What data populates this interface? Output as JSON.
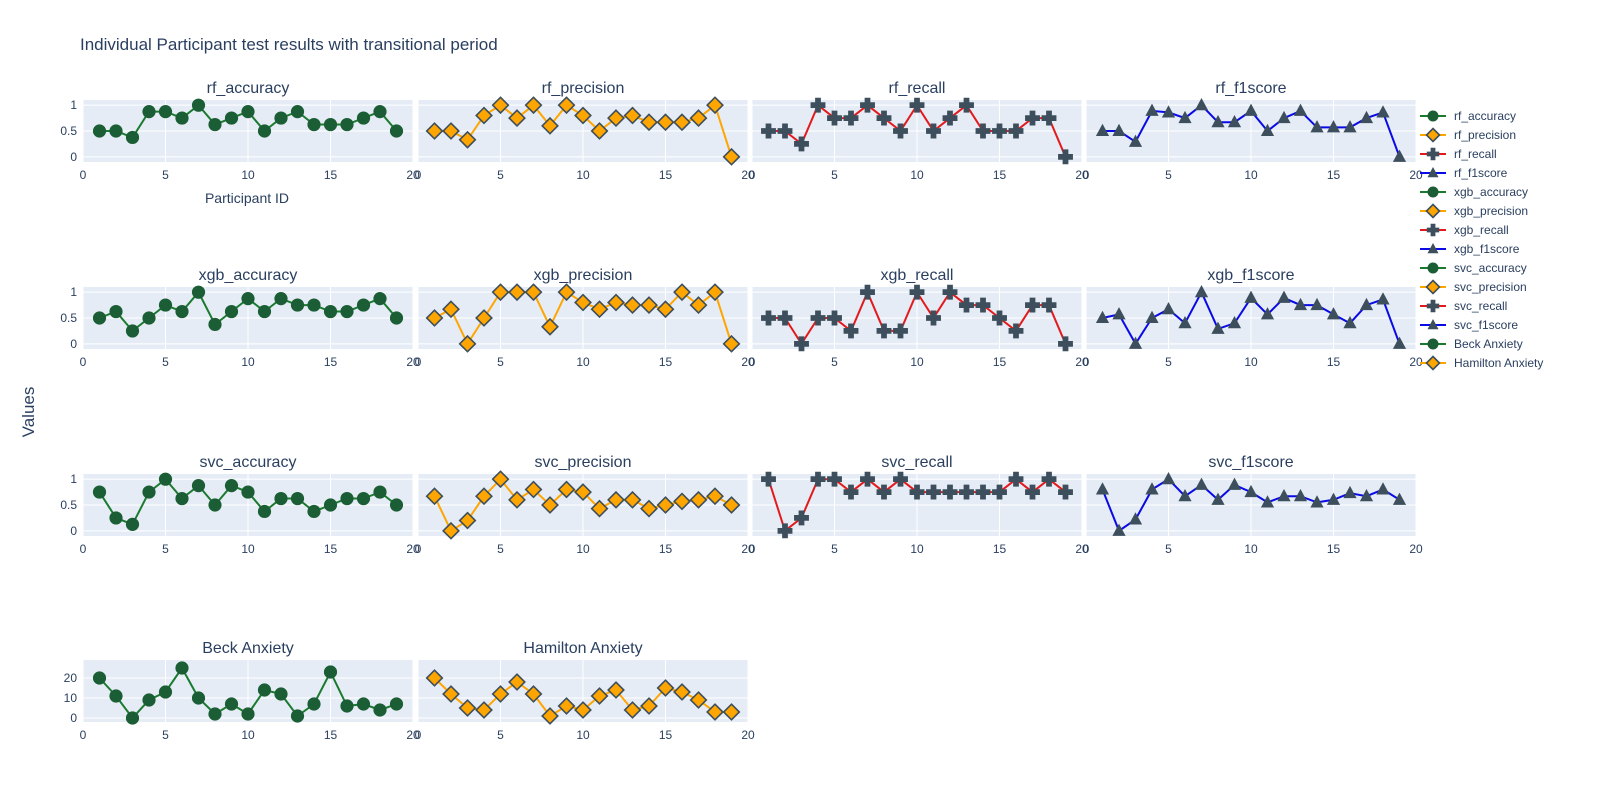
{
  "title": "Individual Participant test results with transitional period",
  "ylabel_global": "Values",
  "xlabel_first": "Participant ID",
  "colors": {
    "green": "#1a7a2e",
    "orange": "#ffa500",
    "red": "#e31a1c",
    "blue": "#0a0ae6",
    "marker": "#3d4f5c",
    "plot_bg": "#e5ecf6",
    "text": "#2a3f5f"
  },
  "legend": [
    {
      "name": "rf_accuracy",
      "color": "green",
      "symbol": "circle"
    },
    {
      "name": "rf_precision",
      "color": "orange",
      "symbol": "diamond"
    },
    {
      "name": "rf_recall",
      "color": "red",
      "symbol": "cross"
    },
    {
      "name": "rf_f1score",
      "color": "blue",
      "symbol": "triangle"
    },
    {
      "name": "xgb_accuracy",
      "color": "green",
      "symbol": "circle"
    },
    {
      "name": "xgb_precision",
      "color": "orange",
      "symbol": "diamond"
    },
    {
      "name": "xgb_recall",
      "color": "red",
      "symbol": "cross"
    },
    {
      "name": "xgb_f1score",
      "color": "blue",
      "symbol": "triangle"
    },
    {
      "name": "svc_accuracy",
      "color": "green",
      "symbol": "circle"
    },
    {
      "name": "svc_precision",
      "color": "orange",
      "symbol": "diamond"
    },
    {
      "name": "svc_recall",
      "color": "red",
      "symbol": "cross"
    },
    {
      "name": "svc_f1score",
      "color": "blue",
      "symbol": "triangle"
    },
    {
      "name": "Beck Anxiety",
      "color": "green",
      "symbol": "circle"
    },
    {
      "name": "Hamilton Anxiety",
      "color": "orange",
      "symbol": "diamond"
    }
  ],
  "chart_data": {
    "type": "line",
    "x": [
      1,
      2,
      3,
      4,
      5,
      6,
      7,
      8,
      9,
      10,
      11,
      12,
      13,
      14,
      15,
      16,
      17,
      18,
      19
    ],
    "xlim": [
      0,
      20
    ],
    "xticks": [
      0,
      5,
      10,
      15,
      20
    ],
    "grid": true,
    "legend_position": "right",
    "panels": [
      {
        "title": "rf_accuracy",
        "color": "green",
        "symbol": "circle",
        "ylim": [
          -0.1,
          1.1
        ],
        "yticks": [
          0,
          0.5,
          1
        ],
        "ytick_labels": [
          "0",
          "0.5",
          "1"
        ],
        "values": [
          0.5,
          0.5,
          0.375,
          0.875,
          0.875,
          0.75,
          1,
          0.625,
          0.75,
          0.875,
          0.5,
          0.75,
          0.875,
          0.625,
          0.625,
          0.625,
          0.75,
          0.875,
          0.5
        ]
      },
      {
        "title": "rf_precision",
        "color": "orange",
        "symbol": "diamond",
        "ylim": [
          -0.1,
          1.1
        ],
        "yticks": [
          0,
          0.5,
          1
        ],
        "ytick_labels": [
          "0",
          "0.5",
          "1"
        ],
        "values": [
          0.5,
          0.5,
          0.33,
          0.8,
          1,
          0.75,
          1,
          0.6,
          1,
          0.8,
          0.5,
          0.75,
          0.8,
          0.67,
          0.67,
          0.67,
          0.75,
          1,
          0
        ]
      },
      {
        "title": "rf_recall",
        "color": "red",
        "symbol": "cross",
        "ylim": [
          -0.1,
          1.1
        ],
        "yticks": [
          0,
          0.5,
          1
        ],
        "ytick_labels": [
          "0",
          "0.5",
          "1"
        ],
        "values": [
          0.5,
          0.5,
          0.25,
          1,
          0.75,
          0.75,
          1,
          0.75,
          0.5,
          1,
          0.5,
          0.75,
          1,
          0.5,
          0.5,
          0.5,
          0.75,
          0.75,
          0
        ]
      },
      {
        "title": "rf_f1score",
        "color": "blue",
        "symbol": "triangle",
        "ylim": [
          -0.1,
          1.1
        ],
        "yticks": [
          0,
          0.5,
          1
        ],
        "ytick_labels": [
          "0",
          "0.5",
          "1"
        ],
        "values": [
          0.5,
          0.5,
          0.29,
          0.89,
          0.86,
          0.75,
          1,
          0.67,
          0.67,
          0.89,
          0.5,
          0.75,
          0.89,
          0.57,
          0.57,
          0.57,
          0.75,
          0.86,
          0
        ]
      },
      {
        "title": "xgb_accuracy",
        "color": "green",
        "symbol": "circle",
        "ylim": [
          -0.1,
          1.1
        ],
        "yticks": [
          0,
          0.5,
          1
        ],
        "ytick_labels": [
          "0",
          "0.5",
          "1"
        ],
        "values": [
          0.5,
          0.625,
          0.25,
          0.5,
          0.75,
          0.625,
          1,
          0.375,
          0.625,
          0.875,
          0.625,
          0.875,
          0.75,
          0.75,
          0.625,
          0.625,
          0.75,
          0.875,
          0.5
        ]
      },
      {
        "title": "xgb_precision",
        "color": "orange",
        "symbol": "diamond",
        "ylim": [
          -0.1,
          1.1
        ],
        "yticks": [
          0,
          0.5,
          1
        ],
        "ytick_labels": [
          "0",
          "0.5",
          "1"
        ],
        "values": [
          0.5,
          0.67,
          0,
          0.5,
          1,
          1,
          1,
          0.33,
          1,
          0.8,
          0.67,
          0.8,
          0.75,
          0.75,
          0.67,
          1,
          0.75,
          1,
          0
        ]
      },
      {
        "title": "xgb_recall",
        "color": "red",
        "symbol": "cross",
        "ylim": [
          -0.1,
          1.1
        ],
        "yticks": [
          0,
          0.5,
          1
        ],
        "ytick_labels": [
          "0",
          "0.5",
          "1"
        ],
        "values": [
          0.5,
          0.5,
          0,
          0.5,
          0.5,
          0.25,
          1,
          0.25,
          0.25,
          1,
          0.5,
          1,
          0.75,
          0.75,
          0.5,
          0.25,
          0.75,
          0.75,
          0
        ]
      },
      {
        "title": "xgb_f1score",
        "color": "blue",
        "symbol": "triangle",
        "ylim": [
          -0.1,
          1.1
        ],
        "yticks": [
          0,
          0.5,
          1
        ],
        "ytick_labels": [
          "0",
          "0.5",
          "1"
        ],
        "values": [
          0.5,
          0.57,
          0,
          0.5,
          0.67,
          0.4,
          1,
          0.29,
          0.4,
          0.89,
          0.57,
          0.89,
          0.75,
          0.75,
          0.57,
          0.4,
          0.75,
          0.86,
          0
        ]
      },
      {
        "title": "svc_accuracy",
        "color": "green",
        "symbol": "circle",
        "ylim": [
          -0.1,
          1.1
        ],
        "yticks": [
          0,
          0.5,
          1
        ],
        "ytick_labels": [
          "0",
          "0.5",
          "1"
        ],
        "values": [
          0.75,
          0.25,
          0.125,
          0.75,
          1,
          0.625,
          0.875,
          0.5,
          0.875,
          0.75,
          0.375,
          0.625,
          0.625,
          0.375,
          0.5,
          0.625,
          0.625,
          0.75,
          0.5
        ]
      },
      {
        "title": "svc_precision",
        "color": "orange",
        "symbol": "diamond",
        "ylim": [
          -0.1,
          1.1
        ],
        "yticks": [
          0,
          0.5,
          1
        ],
        "ytick_labels": [
          "0",
          "0.5",
          "1"
        ],
        "values": [
          0.67,
          0,
          0.2,
          0.67,
          1,
          0.6,
          0.8,
          0.5,
          0.8,
          0.75,
          0.43,
          0.6,
          0.6,
          0.43,
          0.5,
          0.57,
          0.6,
          0.67,
          0.5
        ]
      },
      {
        "title": "svc_recall",
        "color": "red",
        "symbol": "cross",
        "ylim": [
          -0.1,
          1.1
        ],
        "yticks": [
          0,
          0.5,
          1
        ],
        "ytick_labels": [
          "0",
          "0.5",
          "1"
        ],
        "values": [
          1,
          0,
          0.25,
          1,
          1,
          0.75,
          1,
          0.75,
          1,
          0.75,
          0.75,
          0.75,
          0.75,
          0.75,
          0.75,
          1,
          0.75,
          1,
          0.75
        ]
      },
      {
        "title": "svc_f1score",
        "color": "blue",
        "symbol": "triangle",
        "ylim": [
          -0.1,
          1.1
        ],
        "yticks": [
          0,
          0.5,
          1
        ],
        "ytick_labels": [
          "0",
          "0.5",
          "1"
        ],
        "values": [
          0.8,
          0,
          0.22,
          0.8,
          1,
          0.67,
          0.89,
          0.6,
          0.89,
          0.75,
          0.55,
          0.67,
          0.67,
          0.55,
          0.6,
          0.73,
          0.67,
          0.8,
          0.6
        ]
      },
      {
        "title": "Beck Anxiety",
        "color": "green",
        "symbol": "circle",
        "ylim": [
          -2,
          29
        ],
        "yticks": [
          0,
          10,
          20
        ],
        "ytick_labels": [
          "0",
          "10",
          "20"
        ],
        "values": [
          20,
          11,
          0,
          9,
          13,
          25,
          10,
          2,
          7,
          2,
          14,
          12,
          1,
          7,
          23,
          6,
          7,
          4,
          7
        ]
      },
      {
        "title": "Hamilton Anxiety",
        "color": "orange",
        "symbol": "diamond",
        "ylim": [
          -2,
          29
        ],
        "yticks": [
          0,
          10,
          20
        ],
        "ytick_labels": [
          "0",
          "10",
          "20"
        ],
        "values": [
          20,
          12,
          5,
          4,
          12,
          18,
          12,
          1,
          6,
          4,
          11,
          14,
          4,
          6,
          15,
          13,
          9,
          3,
          3
        ]
      }
    ]
  }
}
